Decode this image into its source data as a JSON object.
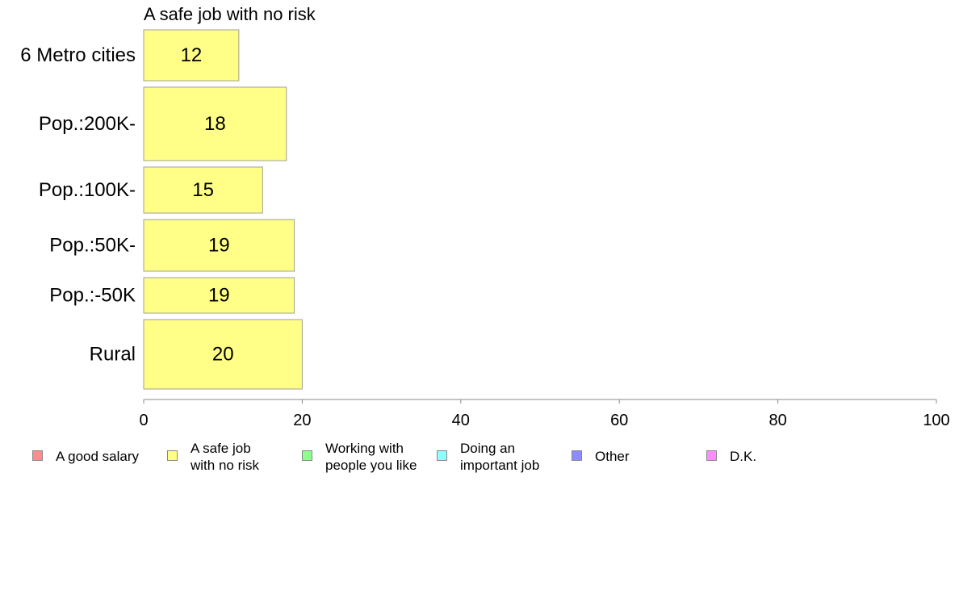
{
  "chart_data": {
    "type": "bar",
    "orientation": "horizontal",
    "title": "A safe job with no risk",
    "categories": [
      "6 Metro cities",
      "Pop.:200K-",
      "Pop.:100K-",
      "Pop.:50K-",
      "Pop.:-50K",
      "Rural"
    ],
    "values": [
      12,
      18,
      15,
      19,
      19,
      20
    ],
    "value_labels": [
      "12",
      "18",
      "15",
      "19",
      "19",
      "20"
    ],
    "xlim": [
      0,
      100
    ],
    "x_ticks": [
      0,
      20,
      40,
      60,
      80,
      100
    ],
    "x_tick_labels": [
      "0",
      "20",
      "40",
      "60",
      "80",
      "100"
    ],
    "bar_color": "#ffff88",
    "bar_stroke": "#a0a090",
    "grid": false,
    "legend_position": "bottom",
    "legend": [
      {
        "label": "A good salary",
        "color": "#ff8c8c"
      },
      {
        "label": "A safe job\nwith no risk",
        "color": "#ffff88"
      },
      {
        "label": "Working with\npeople you like",
        "color": "#8cff8c"
      },
      {
        "label": "Doing an\nimportant job",
        "color": "#8cffff"
      },
      {
        "label": "Other",
        "color": "#8c8cff"
      },
      {
        "label": "D.K.",
        "color": "#ff8cff"
      }
    ]
  }
}
